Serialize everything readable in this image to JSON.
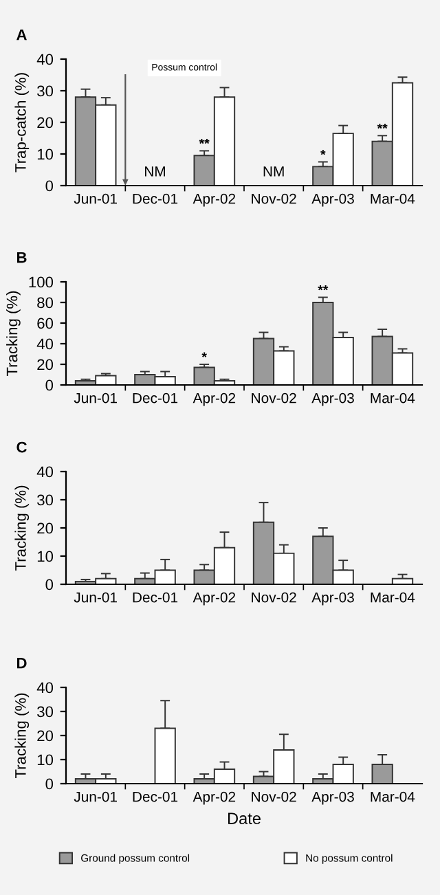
{
  "chart_data": [
    {
      "type": "bar",
      "title": "A",
      "ylabel": "Trap-catch (%)",
      "categories": [
        "Jun-01",
        "Dec-01",
        "Apr-02",
        "Nov-02",
        "Apr-03",
        "Mar-04"
      ],
      "ylim": [
        0,
        40
      ],
      "yticks": [
        0,
        10,
        20,
        30,
        40
      ],
      "grid": false,
      "legend": false,
      "annotations": [
        "Possum control",
        "NM",
        "NM"
      ],
      "series": [
        {
          "color": "#9a9a9a",
          "values": [
            28,
            null,
            9.5,
            null,
            6,
            14
          ],
          "errors": [
            [
              28,
              30.5
            ],
            null,
            [
              9.5,
              11
            ],
            null,
            [
              6,
              7.5
            ],
            [
              14,
              15.8
            ]
          ],
          "value_labels": [
            null,
            null,
            "**",
            null,
            "*",
            "**"
          ]
        },
        {
          "color": "#ffffff",
          "values": [
            25.5,
            null,
            28,
            null,
            16.5,
            32.5
          ],
          "errors": [
            [
              25.5,
              27.8
            ],
            null,
            [
              28,
              31
            ],
            null,
            [
              16.5,
              19
            ],
            [
              32.5,
              34.3
            ]
          ]
        }
      ]
    },
    {
      "type": "bar",
      "title": "B",
      "ylabel": "Tracking (%)",
      "categories": [
        "Jun-01",
        "Dec-01",
        "Apr-02",
        "Nov-02",
        "Apr-03",
        "Mar-04"
      ],
      "ylim": [
        0,
        100
      ],
      "yticks": [
        0,
        20,
        40,
        60,
        80,
        100
      ],
      "grid": false,
      "legend": false,
      "series": [
        {
          "color": "#9a9a9a",
          "values": [
            4,
            10,
            17,
            45,
            80,
            47
          ],
          "errors": [
            [
              4,
              5.5
            ],
            [
              10,
              13
            ],
            [
              17,
              20
            ],
            [
              45,
              51
            ],
            [
              80,
              85
            ],
            [
              47,
              54
            ]
          ],
          "value_labels": [
            null,
            null,
            "*",
            null,
            "**",
            null
          ]
        },
        {
          "color": "#ffffff",
          "values": [
            9,
            8,
            4,
            33,
            46,
            31
          ],
          "errors": [
            [
              9,
              11
            ],
            [
              8,
              13
            ],
            [
              4,
              5.5
            ],
            [
              33,
              37
            ],
            [
              46,
              51
            ],
            [
              31,
              35
            ]
          ]
        }
      ]
    },
    {
      "type": "bar",
      "title": "C",
      "ylabel": "Tracking (%)",
      "categories": [
        "Jun-01",
        "Dec-01",
        "Apr-02",
        "Nov-02",
        "Apr-03",
        "Mar-04"
      ],
      "ylim": [
        0,
        40
      ],
      "yticks": [
        0,
        10,
        20,
        30,
        40
      ],
      "grid": false,
      "legend": false,
      "series": [
        {
          "color": "#9a9a9a",
          "values": [
            1,
            2,
            5,
            22,
            17,
            null
          ],
          "errors": [
            [
              1,
              1.7
            ],
            [
              2,
              4
            ],
            [
              5,
              7
            ],
            [
              22,
              29
            ],
            [
              17,
              20
            ],
            null
          ]
        },
        {
          "color": "#ffffff",
          "values": [
            2,
            5,
            13,
            11,
            5,
            2
          ],
          "errors": [
            [
              2,
              3.8
            ],
            [
              5,
              8.8
            ],
            [
              13,
              18.5
            ],
            [
              11,
              14
            ],
            [
              5,
              8.5
            ],
            [
              2,
              3.5
            ]
          ]
        }
      ]
    },
    {
      "type": "bar",
      "title": "D",
      "ylabel": "Tracking (%)",
      "xlabel": "Date",
      "categories": [
        "Jun-01",
        "Dec-01",
        "Apr-02",
        "Nov-02",
        "Apr-03",
        "Mar-04"
      ],
      "ylim": [
        0,
        40
      ],
      "yticks": [
        0,
        10,
        20,
        30,
        40
      ],
      "grid": false,
      "legend": "bottom",
      "series": [
        {
          "name": "Ground possum control",
          "color": "#9a9a9a",
          "values": [
            2,
            null,
            2,
            3,
            2,
            8
          ],
          "errors": [
            [
              2,
              4
            ],
            null,
            [
              2,
              4
            ],
            [
              3,
              5
            ],
            [
              2,
              4
            ],
            [
              8,
              12
            ]
          ]
        },
        {
          "name": "No possum control",
          "color": "#ffffff",
          "values": [
            2,
            23,
            6,
            14,
            8,
            null
          ],
          "errors": [
            [
              2,
              4
            ],
            [
              23,
              34.5
            ],
            [
              6,
              9
            ],
            [
              14,
              20.5
            ],
            [
              8,
              11
            ],
            null
          ]
        }
      ]
    }
  ]
}
